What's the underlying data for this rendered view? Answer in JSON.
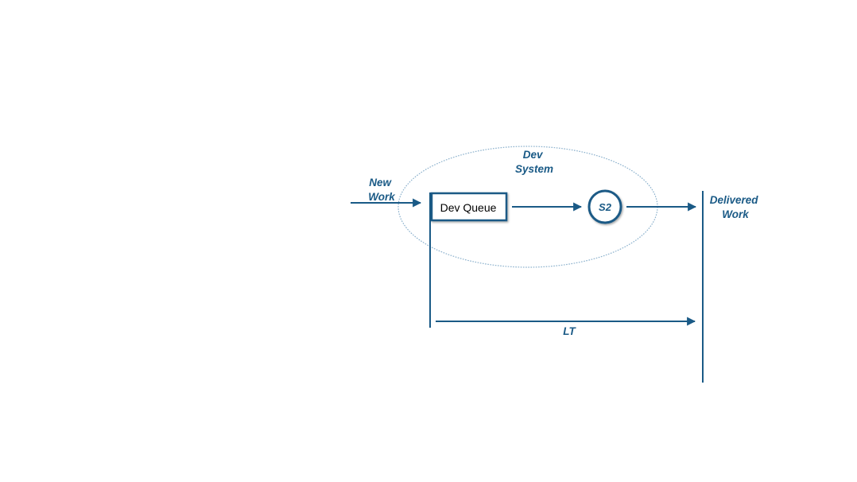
{
  "labels": {
    "new_work": [
      "New",
      "Work"
    ],
    "system": [
      "Dev",
      "System"
    ],
    "queue": "Dev Queue",
    "station": "S2",
    "delivered": [
      "Delivered",
      "Work"
    ],
    "lead_time": "LT"
  },
  "colors": {
    "accent": "#1a5a86",
    "ellipse_stroke": "#8ab0cc",
    "text": "#000000",
    "background": "#ffffff"
  }
}
